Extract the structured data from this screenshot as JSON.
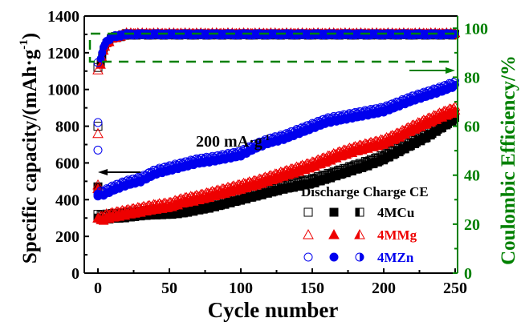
{
  "chart_data": {
    "type": "scatter",
    "title": "",
    "xlabel": "Cycle number",
    "ylabel": "Specific capacity/(mAh·g",
    "ylabel_sup": "-1",
    "ylabel_end": ")",
    "y2label": "Coulombic Efficiency/%",
    "xlim": [
      0,
      250
    ],
    "ylim": [
      0,
      1400
    ],
    "y2lim": [
      0,
      105
    ],
    "x_ticks": [
      "0",
      "50",
      "100",
      "150",
      "200",
      "250"
    ],
    "y_ticks": [
      "0",
      "200",
      "400",
      "600",
      "800",
      "1000",
      "1200",
      "1400"
    ],
    "y2_ticks": [
      "0",
      "20",
      "40",
      "60",
      "80",
      "100"
    ],
    "annotation": {
      "text": "200 mA·g",
      "sup": "-1"
    },
    "legend": {
      "placement": "bottom-right",
      "header": "Discharge Charge CE",
      "entries": [
        {
          "name": "4MCu",
          "color": "#000000",
          "marker": "square"
        },
        {
          "name": "4MMg",
          "color": "#ee0000",
          "marker": "triangle"
        },
        {
          "name": "4MZn",
          "color": "#0000ee",
          "marker": "circle"
        }
      ]
    },
    "ce_color": "#008000",
    "series": [
      {
        "name": "4MCu",
        "color": "#000000",
        "first_cycles": {
          "discharge": [
            320,
            800
          ],
          "charge": [
            300,
            470
          ]
        },
        "x": [
          1,
          5,
          10,
          20,
          30,
          40,
          50,
          60,
          70,
          80,
          90,
          100,
          110,
          120,
          130,
          140,
          150,
          160,
          170,
          180,
          190,
          200,
          210,
          220,
          230,
          240,
          250
        ],
        "capacity": [
          290,
          295,
          300,
          305,
          315,
          320,
          322,
          330,
          345,
          360,
          380,
          400,
          420,
          440,
          460,
          475,
          490,
          515,
          540,
          565,
          590,
          620,
          660,
          700,
          740,
          790,
          840
        ],
        "ce": [
          84,
          93,
          96,
          97.5,
          97.5,
          97.5,
          97.5,
          97.5,
          97.5,
          97.5,
          97.5,
          97.5,
          97.5,
          97.5,
          97.5,
          97.5,
          97.5,
          97.5,
          97.5,
          97.5,
          97.5,
          97.5,
          97.5,
          97.5,
          97.5,
          97.5,
          97.5
        ]
      },
      {
        "name": "4MMg",
        "color": "#ee0000",
        "first_cycles": {
          "discharge": [
            480,
            760
          ],
          "charge": [
            300,
            460
          ]
        },
        "x": [
          1,
          5,
          10,
          20,
          30,
          40,
          50,
          60,
          70,
          80,
          90,
          100,
          110,
          120,
          130,
          140,
          150,
          160,
          170,
          180,
          190,
          200,
          210,
          220,
          230,
          240,
          250
        ],
        "capacity": [
          280,
          295,
          305,
          320,
          335,
          350,
          360,
          385,
          400,
          420,
          440,
          460,
          480,
          505,
          530,
          555,
          580,
          610,
          640,
          665,
          685,
          705,
          740,
          780,
          815,
          850,
          880
        ],
        "ce": [
          83,
          93,
          96,
          97.8,
          97.8,
          97.8,
          97.8,
          97.8,
          97.8,
          97.8,
          97.8,
          97.8,
          97.8,
          97.8,
          97.8,
          97.8,
          97.8,
          97.8,
          97.8,
          97.8,
          97.8,
          97.8,
          97.8,
          97.8,
          97.8,
          97.8,
          97.8
        ]
      },
      {
        "name": "4MZn",
        "color": "#0000ee",
        "first_cycles": {
          "discharge": [
            670,
            820
          ],
          "charge": [
            420,
            430
          ]
        },
        "x": [
          1,
          5,
          10,
          20,
          30,
          40,
          50,
          60,
          70,
          80,
          90,
          100,
          110,
          120,
          130,
          140,
          150,
          160,
          170,
          180,
          190,
          200,
          210,
          220,
          230,
          240,
          250
        ],
        "capacity": [
          420,
          430,
          450,
          480,
          500,
          540,
          560,
          580,
          600,
          610,
          625,
          640,
          680,
          710,
          730,
          760,
          790,
          820,
          835,
          850,
          865,
          880,
          910,
          940,
          965,
          990,
          1020
        ],
        "ce": [
          86,
          94,
          96.5,
          97.5,
          97.5,
          97.5,
          97.5,
          97.5,
          97.5,
          97.5,
          97.5,
          97.5,
          97.5,
          97.5,
          97.5,
          97.5,
          97.5,
          97.5,
          97.5,
          97.5,
          97.5,
          97.5,
          97.5,
          97.5,
          97.5,
          97.5,
          97.5
        ]
      }
    ]
  }
}
